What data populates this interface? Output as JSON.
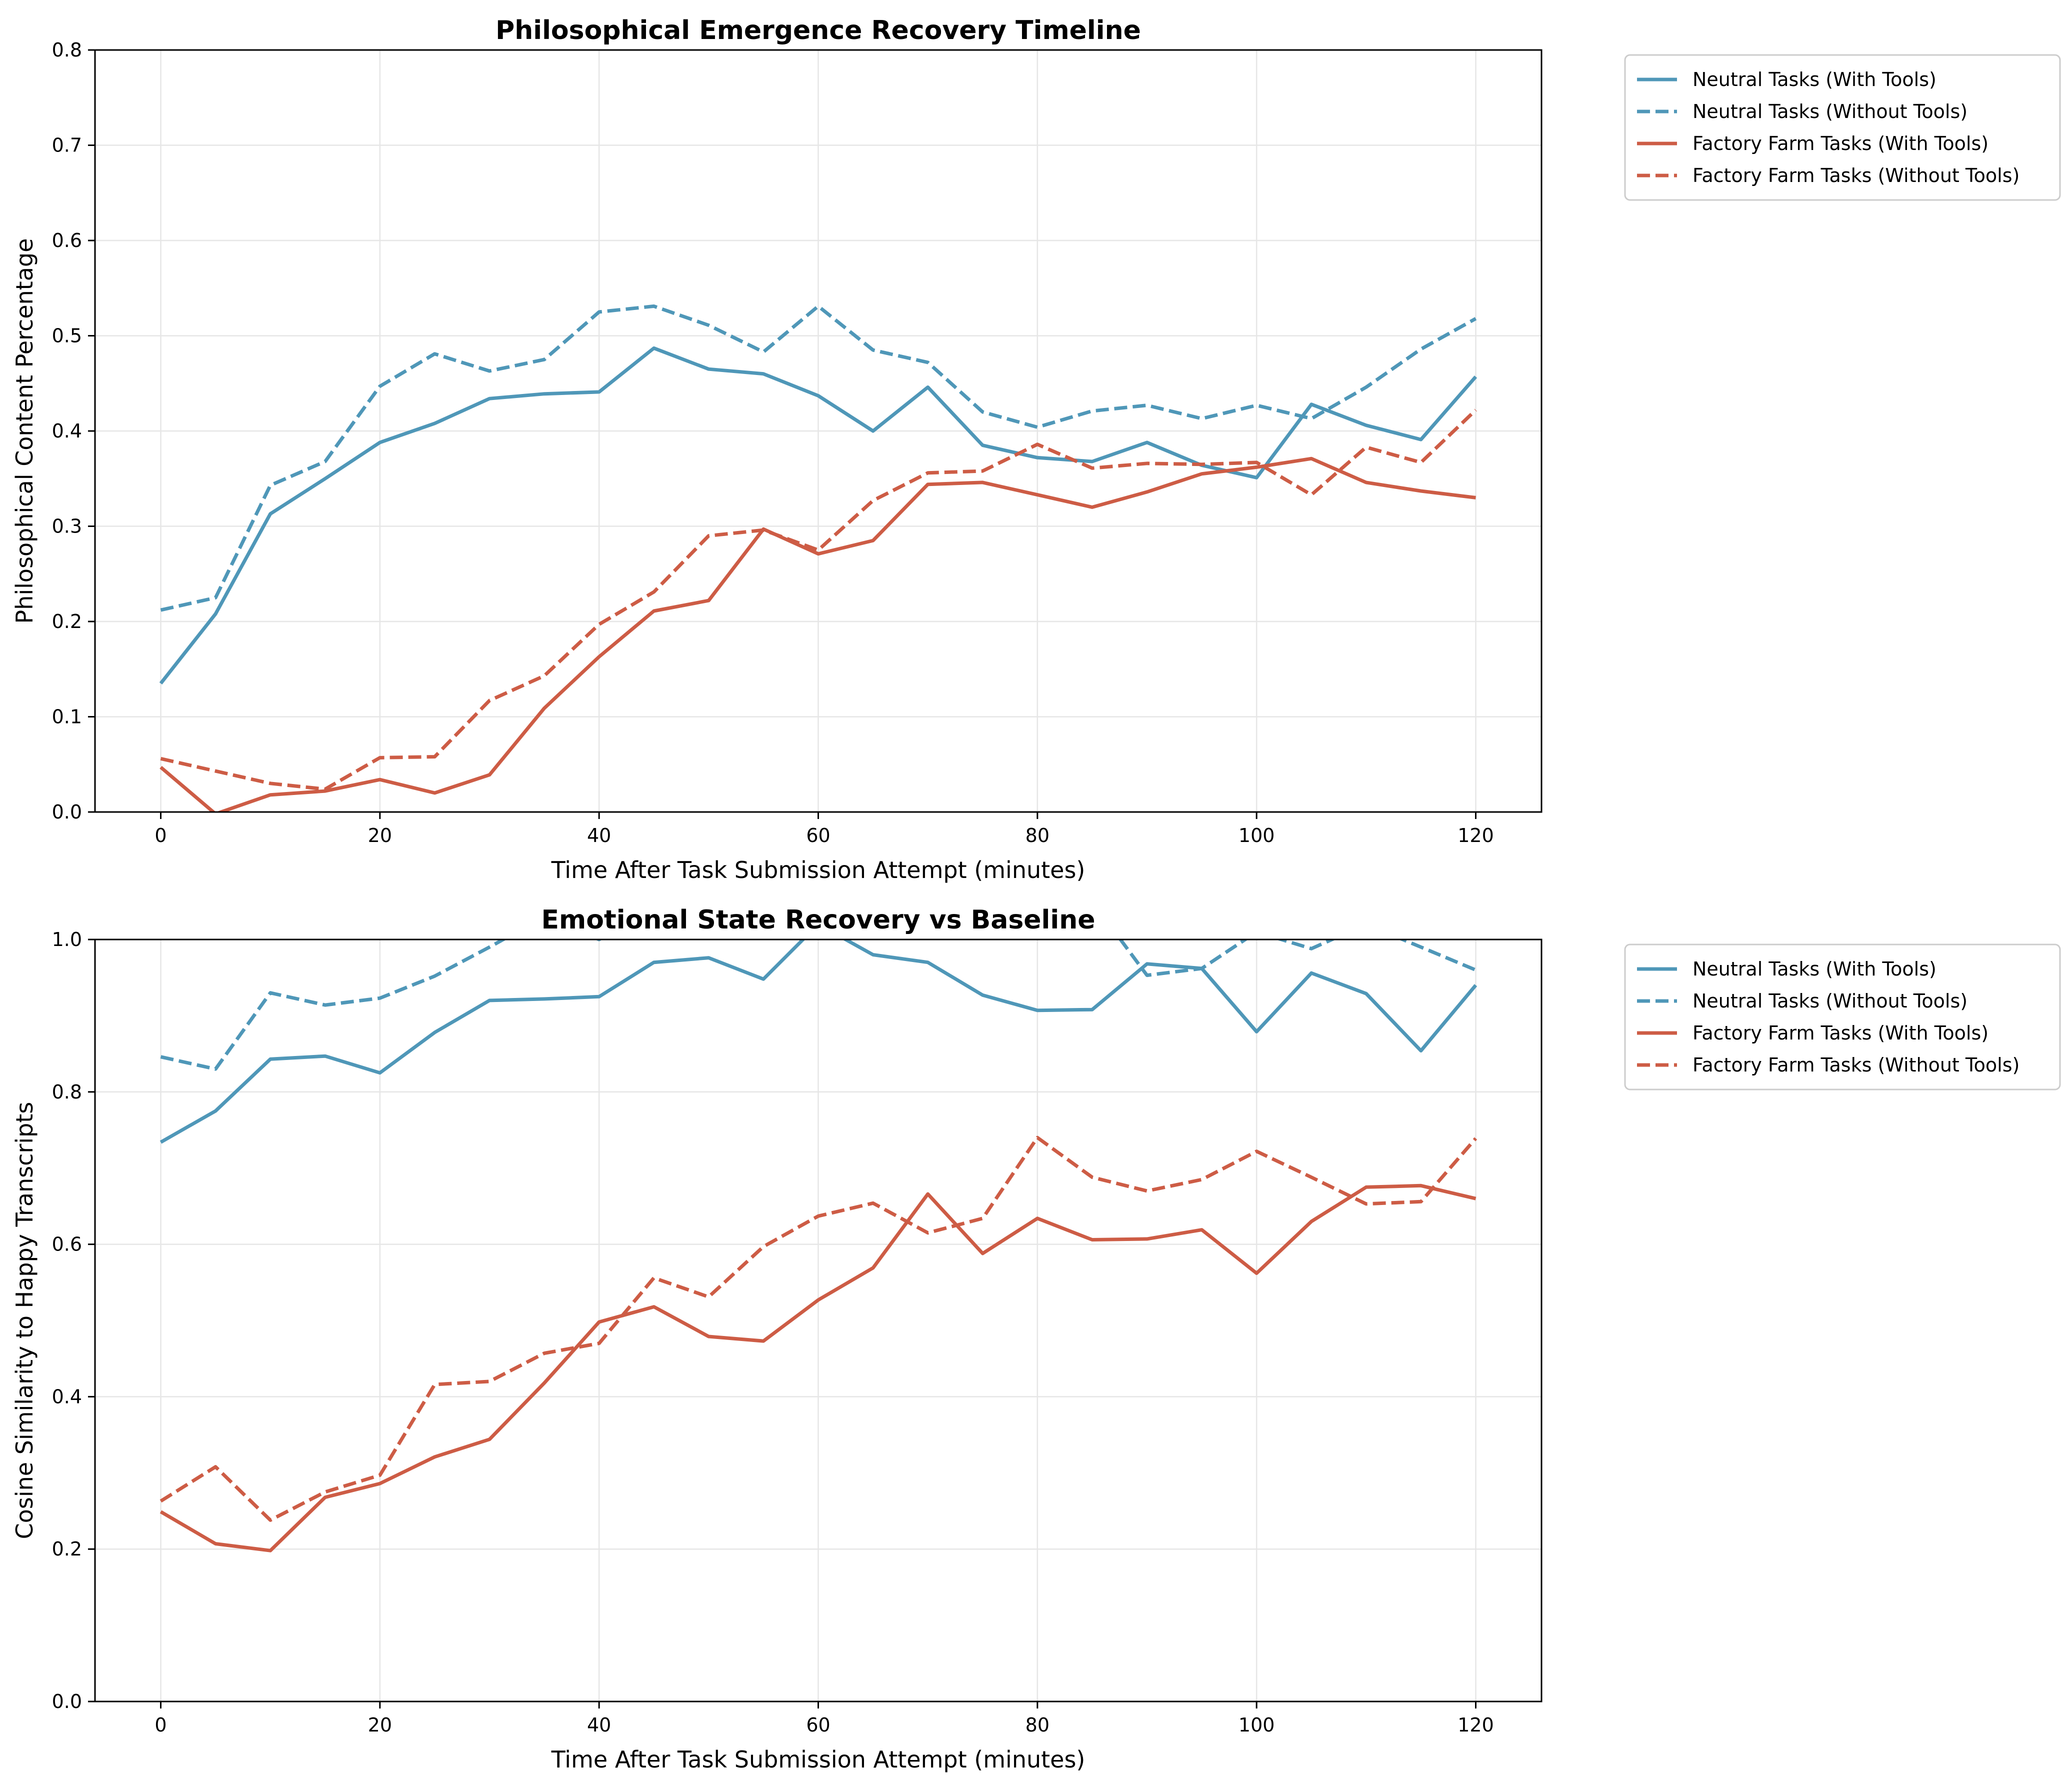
{
  "chart_data": [
    {
      "type": "line",
      "title": "Philosophical Emergence Recovery Timeline",
      "xlabel": "Time After Task Submission Attempt (minutes)",
      "ylabel": "Philosophical Content Percentage",
      "xlim": [
        -6,
        126
      ],
      "ylim": [
        0,
        0.8
      ],
      "xticks": [
        0,
        20,
        40,
        60,
        80,
        100,
        120
      ],
      "yticks": [
        0.0,
        0.1,
        0.2,
        0.3,
        0.4,
        0.5,
        0.6,
        0.7,
        0.8
      ],
      "ytick_labels": [
        "0.0",
        "0.1",
        "0.2",
        "0.3",
        "0.4",
        "0.5",
        "0.6",
        "0.7",
        "0.8"
      ],
      "grid": true,
      "legend_position": "outside-top-right",
      "x": [
        0,
        5,
        10,
        15,
        20,
        25,
        30,
        35,
        40,
        45,
        50,
        55,
        60,
        65,
        70,
        75,
        80,
        85,
        90,
        95,
        100,
        105,
        110,
        115,
        120
      ],
      "series": [
        {
          "name": "Neutral Tasks (With Tools)",
          "color": "#4f97b8",
          "dashed": false,
          "values": [
            0.135,
            0.208,
            0.313,
            0.35,
            0.388,
            0.408,
            0.434,
            0.439,
            0.441,
            0.487,
            0.465,
            0.46,
            0.437,
            0.4,
            0.446,
            0.385,
            0.372,
            0.368,
            0.388,
            0.364,
            0.351,
            0.428,
            0.406,
            0.391,
            0.457
          ]
        },
        {
          "name": "Neutral Tasks (Without Tools)",
          "color": "#4f97b8",
          "dashed": true,
          "values": [
            0.212,
            0.225,
            0.343,
            0.368,
            0.447,
            0.481,
            0.463,
            0.475,
            0.525,
            0.531,
            0.511,
            0.483,
            0.531,
            0.485,
            0.472,
            0.42,
            0.404,
            0.421,
            0.427,
            0.413,
            0.427,
            0.413,
            0.446,
            0.486,
            0.518
          ]
        },
        {
          "name": "Factory Farm Tasks (With Tools)",
          "color": "#cd5c45",
          "dashed": false,
          "values": [
            0.047,
            -0.002,
            0.018,
            0.022,
            0.034,
            0.02,
            0.039,
            0.109,
            0.163,
            0.211,
            0.222,
            0.297,
            0.271,
            0.285,
            0.344,
            0.346,
            0.333,
            0.32,
            0.336,
            0.355,
            0.362,
            0.371,
            0.346,
            0.337,
            0.33
          ]
        },
        {
          "name": "Factory Farm Tasks (Without Tools)",
          "color": "#cd5c45",
          "dashed": true,
          "values": [
            0.056,
            0.043,
            0.03,
            0.024,
            0.057,
            0.058,
            0.117,
            0.143,
            0.197,
            0.231,
            0.29,
            0.296,
            0.275,
            0.327,
            0.356,
            0.358,
            0.386,
            0.361,
            0.366,
            0.365,
            0.367,
            0.333,
            0.383,
            0.367,
            0.422
          ]
        }
      ]
    },
    {
      "type": "line",
      "title": "Emotional State Recovery vs Baseline",
      "xlabel": "Time After Task Submission Attempt (minutes)",
      "ylabel": "Cosine Similarity to Happy Transcripts",
      "xlim": [
        -6,
        126
      ],
      "ylim": [
        0,
        1.0
      ],
      "xticks": [
        0,
        20,
        40,
        60,
        80,
        100,
        120
      ],
      "yticks": [
        0.0,
        0.2,
        0.4,
        0.6,
        0.8,
        1.0
      ],
      "ytick_labels": [
        "0.0",
        "0.2",
        "0.4",
        "0.6",
        "0.8",
        "1.0"
      ],
      "grid": true,
      "legend_position": "outside-top-right",
      "x": [
        0,
        5,
        10,
        15,
        20,
        25,
        30,
        35,
        40,
        45,
        50,
        55,
        60,
        65,
        70,
        75,
        80,
        85,
        90,
        95,
        100,
        105,
        110,
        115,
        120
      ],
      "series": [
        {
          "name": "Neutral Tasks (With Tools)",
          "color": "#4f97b8",
          "dashed": false,
          "values": [
            0.734,
            0.775,
            0.843,
            0.847,
            0.825,
            0.878,
            0.92,
            0.922,
            0.925,
            0.97,
            0.976,
            0.948,
            1.02,
            0.98,
            0.97,
            0.927,
            0.907,
            0.908,
            0.968,
            0.962,
            0.879,
            0.956,
            0.929,
            0.854,
            0.94
          ]
        },
        {
          "name": "Neutral Tasks (Without Tools)",
          "color": "#4f97b8",
          "dashed": true,
          "values": [
            0.846,
            0.83,
            0.93,
            0.914,
            0.923,
            0.952,
            0.99,
            1.03,
            1.0,
            1.04,
            1.05,
            1.04,
            1.05,
            1.05,
            1.04,
            1.04,
            1.05,
            1.05,
            0.953,
            0.962,
            1.01,
            0.988,
            1.02,
            0.99,
            0.96
          ]
        },
        {
          "name": "Factory Farm Tasks (With Tools)",
          "color": "#cd5c45",
          "dashed": false,
          "values": [
            0.249,
            0.207,
            0.198,
            0.268,
            0.286,
            0.321,
            0.344,
            0.418,
            0.498,
            0.518,
            0.479,
            0.473,
            0.527,
            0.569,
            0.666,
            0.588,
            0.634,
            0.606,
            0.607,
            0.619,
            0.562,
            0.63,
            0.675,
            0.677,
            0.66
          ]
        },
        {
          "name": "Factory Farm Tasks (Without Tools)",
          "color": "#cd5c45",
          "dashed": true,
          "values": [
            0.263,
            0.308,
            0.238,
            0.275,
            0.297,
            0.416,
            0.42,
            0.457,
            0.47,
            0.556,
            0.531,
            0.597,
            0.637,
            0.654,
            0.615,
            0.634,
            0.74,
            0.688,
            0.67,
            0.685,
            0.722,
            0.688,
            0.653,
            0.656,
            0.739
          ]
        }
      ]
    }
  ]
}
